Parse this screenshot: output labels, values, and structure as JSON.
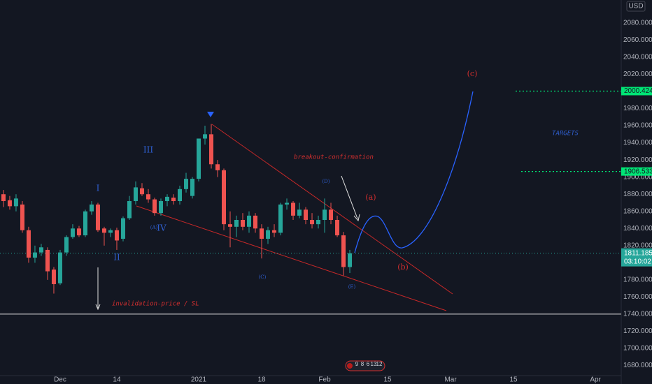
{
  "chart_data": {
    "type": "candlestick",
    "currency": "USD",
    "open": [
      1880,
      1873,
      1866,
      1868,
      1838,
      1806,
      1812,
      1815,
      1792,
      1776,
      1812,
      1830,
      1840,
      1832,
      1860,
      1868,
      1840,
      1835,
      1838,
      1828,
      1852,
      1872,
      1887,
      1880,
      1874,
      1858,
      1872,
      1876,
      1872,
      1886,
      1878,
      1898,
      1945,
      1950,
      1915,
      1908,
      1845,
      1842,
      1850,
      1842,
      1855,
      1840,
      1828,
      1838,
      1835,
      1868,
      1870,
      1855,
      1862,
      1850,
      1845,
      1850,
      1862,
      1850,
      1832,
      1795
    ],
    "high": [
      1885,
      1878,
      1880,
      1872,
      1842,
      1820,
      1822,
      1818,
      1795,
      1815,
      1832,
      1845,
      1843,
      1862,
      1872,
      1870,
      1842,
      1840,
      1841,
      1854,
      1878,
      1895,
      1893,
      1886,
      1876,
      1875,
      1880,
      1880,
      1890,
      1905,
      1900,
      1945,
      1960,
      1962,
      1920,
      1910,
      1860,
      1855,
      1858,
      1860,
      1858,
      1845,
      1842,
      1845,
      1870,
      1875,
      1872,
      1870,
      1865,
      1858,
      1855,
      1875,
      1870,
      1855,
      1836,
      1815
    ],
    "low": [
      1865,
      1862,
      1860,
      1835,
      1800,
      1800,
      1808,
      1780,
      1764,
      1774,
      1808,
      1828,
      1830,
      1830,
      1856,
      1836,
      1820,
      1830,
      1815,
      1825,
      1850,
      1868,
      1878,
      1870,
      1855,
      1855,
      1866,
      1868,
      1868,
      1882,
      1875,
      1895,
      1938,
      1910,
      1900,
      1838,
      1818,
      1830,
      1838,
      1835,
      1835,
      1805,
      1822,
      1830,
      1832,
      1862,
      1850,
      1852,
      1845,
      1840,
      1840,
      1835,
      1845,
      1830,
      1785,
      1788
    ],
    "close": [
      1872,
      1866,
      1875,
      1838,
      1806,
      1812,
      1818,
      1790,
      1775,
      1812,
      1830,
      1840,
      1832,
      1860,
      1868,
      1838,
      1835,
      1838,
      1826,
      1852,
      1872,
      1888,
      1880,
      1874,
      1858,
      1872,
      1877,
      1872,
      1886,
      1898,
      1898,
      1945,
      1950,
      1915,
      1908,
      1845,
      1842,
      1850,
      1842,
      1855,
      1840,
      1828,
      1838,
      1835,
      1868,
      1870,
      1855,
      1862,
      1850,
      1845,
      1850,
      1862,
      1850,
      1832,
      1795,
      1811
    ],
    "up_color": "#26a69a",
    "down_color": "#ef5350",
    "ylim": [
      1668.2,
      2106.8
    ],
    "yticks": [
      {
        "value": 2080,
        "label": "2080.000"
      },
      {
        "value": 2060,
        "label": "2060.000"
      },
      {
        "value": 2040,
        "label": "2040.000"
      },
      {
        "value": 2020,
        "label": "2020.000"
      },
      {
        "value": 1980,
        "label": "1980.000"
      },
      {
        "value": 1960,
        "label": "1960.000"
      },
      {
        "value": 1940,
        "label": "1940.000"
      },
      {
        "value": 1920,
        "label": "1920.000"
      },
      {
        "value": 1900,
        "label": "1900.000"
      },
      {
        "value": 1880,
        "label": "1880.000"
      },
      {
        "value": 1860,
        "label": "1860.000"
      },
      {
        "value": 1840,
        "label": "1840.000"
      },
      {
        "value": 1820,
        "label": "1820.000"
      },
      {
        "value": 1780,
        "label": "1780.000"
      },
      {
        "value": 1760,
        "label": "1760.000"
      },
      {
        "value": 1740,
        "label": "1740.000"
      },
      {
        "value": 1720,
        "label": "1720.000"
      },
      {
        "value": 1700,
        "label": "1700.000"
      },
      {
        "value": 1680,
        "label": "1680.000"
      }
    ],
    "xlim": [
      -0.55,
      98.1
    ],
    "xticks": [
      {
        "value": 9,
        "label": "Dec"
      },
      {
        "value": 18,
        "label": "14"
      },
      {
        "value": 31,
        "label": "2021"
      },
      {
        "value": 41,
        "label": "18"
      },
      {
        "value": 51,
        "label": "Feb"
      },
      {
        "value": 61,
        "label": "15"
      },
      {
        "value": 71,
        "label": "Mar"
      },
      {
        "value": 81,
        "label": "15"
      },
      {
        "value": 94,
        "label": "Apr"
      }
    ],
    "grid": false,
    "last_price": 1811.185,
    "countdown": "03:10:02",
    "targets": [
      2000.424,
      1906.533
    ],
    "target_color": "#00e676",
    "invalidation": {
      "label": "invalidation-price / SL",
      "value": 1740
    },
    "wave_labels": [
      "I",
      "II",
      "III",
      "(A)",
      "IV",
      "(C)",
      "(D)",
      "(E)"
    ],
    "projection_labels": [
      "(a)",
      "(b)",
      "(c)"
    ],
    "annotations": [
      "breakout-confirmation",
      "TARGETS"
    ],
    "events": [
      "9",
      "8",
      "6",
      "13",
      "12"
    ]
  }
}
